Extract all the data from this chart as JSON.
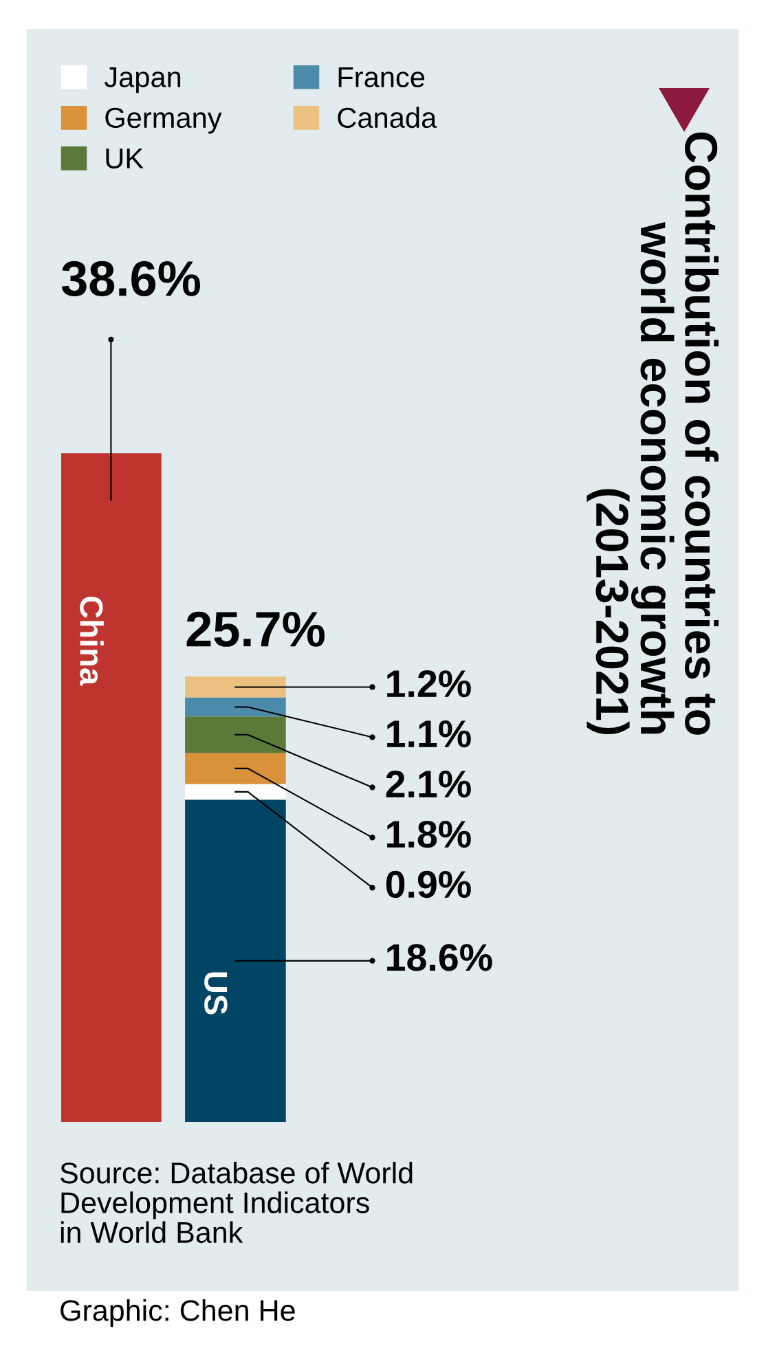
{
  "chart_data": {
    "type": "bar",
    "title": "Contribution of countries to\nworld economic growth\n(2013-2021)",
    "categories": [
      null,
      null
    ],
    "stacked": true,
    "legend": "top",
    "series": [
      {
        "name": "China",
        "color": "#c0342f",
        "values": [
          38.6,
          null
        ],
        "value_labels": [
          "38.6%",
          null
        ]
      },
      {
        "name": "US",
        "color": "#004563",
        "values": [
          null,
          18.6
        ],
        "value_labels": [
          null,
          "18.6%"
        ]
      },
      {
        "name": "Japan",
        "color": "#ffffff",
        "values": [
          null,
          0.9
        ],
        "value_labels": [
          null,
          "0.9%"
        ]
      },
      {
        "name": "Germany",
        "color": "#d9913a",
        "values": [
          null,
          1.8
        ],
        "value_labels": [
          null,
          "1.8%"
        ]
      },
      {
        "name": "UK",
        "color": "#5b7a3a",
        "values": [
          null,
          2.1
        ],
        "value_labels": [
          null,
          "2.1%"
        ]
      },
      {
        "name": "France",
        "color": "#4b8aa8",
        "values": [
          null,
          1.1
        ],
        "value_labels": [
          null,
          "1.1%"
        ]
      },
      {
        "name": "Canada",
        "color": "#ebc080",
        "values": [
          null,
          1.2
        ],
        "value_labels": [
          null,
          "1.2%"
        ]
      }
    ],
    "totals": [
      null,
      "25.7%"
    ],
    "annotations": [
      "Source: Database of World\nDevelopment Indicators\nin World Bank",
      "Graphic: Chen He"
    ]
  }
}
